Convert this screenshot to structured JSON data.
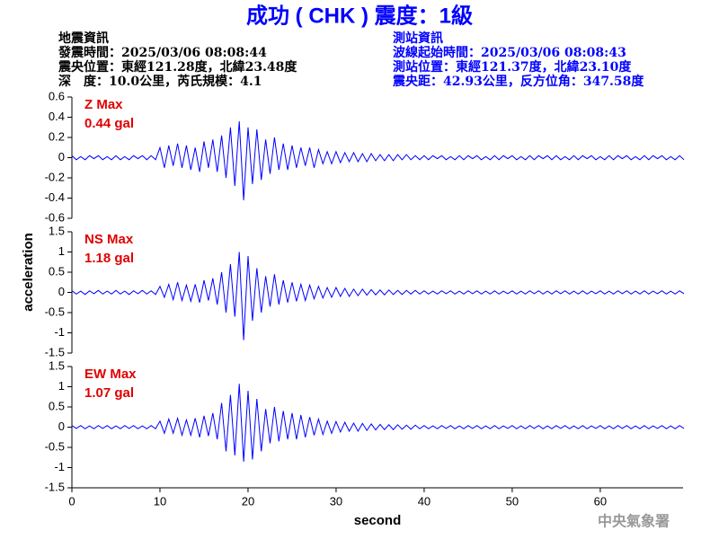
{
  "header": {
    "title": "成功 ( CHK ) 震度：1級",
    "left": [
      "地震資訊",
      "發震時間：2025/03/06 08:08:44",
      "震央位置：東經121.28度，北緯23.48度",
      "深　度：10.0公里，芮氏規模：4.1"
    ],
    "right": [
      "測站資訊",
      "波線起始時間：2025/03/06 08:08:43",
      "測站位置：東經121.37度，北緯23.10度",
      "震央距：42.93公里，反方位角：347.58度"
    ],
    "ylabel": "acceleration",
    "footer": "中央氣象署"
  },
  "chart_data": [
    {
      "type": "line",
      "annotations": [
        "Z Max",
        "0.44 gal"
      ],
      "annotation_color": "#e00000",
      "color": "#0000ff",
      "xlim": [
        0,
        69.4
      ],
      "ylim": [
        -0.6,
        0.6
      ],
      "yticks": [
        0.6,
        0.4,
        0.2,
        0,
        -0.2,
        -0.4,
        -0.6
      ],
      "x": [
        0,
        0.5,
        1,
        1.5,
        2,
        2.5,
        3,
        3.5,
        4,
        4.5,
        5,
        5.5,
        6,
        6.5,
        7,
        7.5,
        8,
        8.5,
        9,
        9.5,
        10,
        10.5,
        11,
        11.5,
        12,
        12.5,
        13,
        13.5,
        14,
        14.5,
        15,
        15.5,
        16,
        16.5,
        17,
        17.5,
        18,
        18.5,
        19,
        19.5,
        20,
        20.5,
        21,
        21.5,
        22,
        22.5,
        23,
        23.5,
        24,
        24.5,
        25,
        25.5,
        26,
        26.5,
        27,
        27.5,
        28,
        28.5,
        29,
        29.5,
        30,
        30.5,
        31,
        31.5,
        32,
        32.5,
        33,
        33.5,
        34,
        34.5,
        35,
        35.5,
        36,
        36.5,
        37,
        37.5,
        38,
        38.5,
        39,
        39.5,
        40,
        40.5,
        41,
        41.5,
        42,
        42.5,
        43,
        43.5,
        44,
        44.5,
        45,
        45.5,
        46,
        46.5,
        47,
        47.5,
        48,
        48.5,
        49,
        49.5,
        50,
        50.5,
        51,
        51.5,
        52,
        52.5,
        53,
        53.5,
        54,
        54.5,
        55,
        55.5,
        56,
        56.5,
        57,
        57.5,
        58,
        58.5,
        59,
        59.5,
        60,
        60.5,
        61,
        61.5,
        62,
        62.5,
        63,
        63.5,
        64,
        64.5,
        65,
        65.5,
        66,
        66.5,
        67,
        67.5,
        68,
        68.5,
        69,
        69.5
      ],
      "values": [
        0.02,
        -0.02,
        0.01,
        -0.02,
        0.02,
        -0.01,
        0.02,
        -0.02,
        0.01,
        -0.02,
        0.02,
        -0.02,
        0.01,
        -0.02,
        0.02,
        -0.01,
        0.02,
        -0.02,
        0.02,
        -0.02,
        0.1,
        -0.1,
        0.12,
        -0.08,
        0.14,
        -0.1,
        0.12,
        -0.12,
        0.1,
        -0.14,
        0.16,
        -0.1,
        0.18,
        -0.14,
        0.22,
        -0.2,
        0.3,
        -0.28,
        0.36,
        -0.42,
        0.3,
        -0.26,
        0.28,
        -0.22,
        0.18,
        -0.16,
        0.2,
        -0.12,
        0.14,
        -0.12,
        0.12,
        -0.1,
        0.1,
        -0.08,
        0.1,
        -0.1,
        0.08,
        -0.06,
        0.06,
        -0.06,
        0.06,
        -0.05,
        0.05,
        -0.04,
        0.05,
        -0.04,
        0.04,
        -0.04,
        0.04,
        -0.03,
        0.03,
        -0.03,
        0.03,
        -0.03,
        0.03,
        -0.02,
        0.03,
        -0.02,
        0.02,
        -0.02,
        0.02,
        -0.02,
        0.02,
        -0.01,
        0.02,
        -0.02,
        0.01,
        -0.02,
        0.02,
        -0.02,
        0.02,
        -0.01,
        0.02,
        -0.02,
        0.01,
        -0.02,
        0.02,
        -0.02,
        0.02,
        -0.01,
        0.02,
        -0.02,
        0.01,
        -0.02,
        0.02,
        -0.02,
        0.02,
        -0.01,
        0.02,
        -0.02,
        0.02,
        -0.02,
        0.01,
        -0.02,
        0.02,
        -0.02,
        0.02,
        -0.01,
        0.02,
        -0.02,
        0.01,
        -0.02,
        0.02,
        -0.02,
        0.02,
        -0.01,
        0.02,
        -0.02,
        0.01,
        -0.02,
        0.02,
        -0.02,
        0.02,
        -0.01,
        0.02,
        -0.02,
        0.01,
        -0.02,
        0.02,
        -0.02
      ]
    },
    {
      "type": "line",
      "annotations": [
        "NS Max",
        "1.18 gal"
      ],
      "annotation_color": "#e00000",
      "color": "#0000ff",
      "xlim": [
        0,
        69.4
      ],
      "ylim": [
        -1.5,
        1.5
      ],
      "yticks": [
        1.5,
        1,
        0.5,
        0,
        -0.5,
        -1,
        -1.5
      ],
      "x": [
        0,
        0.5,
        1,
        1.5,
        2,
        2.5,
        3,
        3.5,
        4,
        4.5,
        5,
        5.5,
        6,
        6.5,
        7,
        7.5,
        8,
        8.5,
        9,
        9.5,
        10,
        10.5,
        11,
        11.5,
        12,
        12.5,
        13,
        13.5,
        14,
        14.5,
        15,
        15.5,
        16,
        16.5,
        17,
        17.5,
        18,
        18.5,
        19,
        19.5,
        20,
        20.5,
        21,
        21.5,
        22,
        22.5,
        23,
        23.5,
        24,
        24.5,
        25,
        25.5,
        26,
        26.5,
        27,
        27.5,
        28,
        28.5,
        29,
        29.5,
        30,
        30.5,
        31,
        31.5,
        32,
        32.5,
        33,
        33.5,
        34,
        34.5,
        35,
        35.5,
        36,
        36.5,
        37,
        37.5,
        38,
        38.5,
        39,
        39.5,
        40,
        40.5,
        41,
        41.5,
        42,
        42.5,
        43,
        43.5,
        44,
        44.5,
        45,
        45.5,
        46,
        46.5,
        47,
        47.5,
        48,
        48.5,
        49,
        49.5,
        50,
        50.5,
        51,
        51.5,
        52,
        52.5,
        53,
        53.5,
        54,
        54.5,
        55,
        55.5,
        56,
        56.5,
        57,
        57.5,
        58,
        58.5,
        59,
        59.5,
        60,
        60.5,
        61,
        61.5,
        62,
        62.5,
        63,
        63.5,
        64,
        64.5,
        65,
        65.5,
        66,
        66.5,
        67,
        67.5,
        68,
        68.5,
        69,
        69.5
      ],
      "values": [
        0.04,
        -0.04,
        0.03,
        -0.05,
        0.04,
        -0.03,
        0.05,
        -0.04,
        0.03,
        -0.04,
        0.05,
        -0.04,
        0.03,
        -0.05,
        0.04,
        -0.03,
        0.05,
        -0.04,
        0.04,
        -0.05,
        0.15,
        -0.12,
        0.2,
        -0.18,
        0.25,
        -0.2,
        0.18,
        -0.22,
        0.2,
        -0.25,
        0.3,
        -0.2,
        0.35,
        -0.3,
        0.5,
        -0.5,
        0.7,
        -0.6,
        1.0,
        -1.18,
        0.9,
        -0.7,
        0.6,
        -0.5,
        0.4,
        -0.35,
        0.45,
        -0.3,
        0.3,
        -0.25,
        0.25,
        -0.22,
        0.2,
        -0.2,
        0.18,
        -0.16,
        0.15,
        -0.14,
        0.12,
        -0.12,
        0.12,
        -0.1,
        0.1,
        -0.1,
        0.08,
        -0.08,
        0.08,
        -0.07,
        0.07,
        -0.06,
        0.06,
        -0.06,
        0.06,
        -0.05,
        0.05,
        -0.05,
        0.05,
        -0.04,
        0.05,
        -0.04,
        0.04,
        -0.04,
        0.03,
        -0.04,
        0.04,
        -0.03,
        0.04,
        -0.04,
        0.03,
        -0.04,
        0.04,
        -0.03,
        0.04,
        -0.04,
        0.03,
        -0.04,
        0.04,
        -0.04,
        0.03,
        -0.03,
        0.04,
        -0.04,
        0.03,
        -0.04,
        0.04,
        -0.03,
        0.04,
        -0.04,
        0.03,
        -0.04,
        0.04,
        -0.03,
        0.04,
        -0.04,
        0.03,
        -0.04,
        0.04,
        -0.04,
        0.03,
        -0.03,
        0.04,
        -0.04,
        0.03,
        -0.04,
        0.04,
        -0.03,
        0.04,
        -0.04,
        0.03,
        -0.04,
        0.04,
        -0.04,
        0.03,
        -0.03,
        0.04,
        -0.04,
        0.03,
        -0.04,
        0.04,
        -0.03
      ]
    },
    {
      "type": "line",
      "annotations": [
        "EW Max",
        "1.07 gal"
      ],
      "annotation_color": "#e00000",
      "color": "#0000ff",
      "xlim": [
        0,
        69.4
      ],
      "ylim": [
        -1.5,
        1.5
      ],
      "yticks": [
        1.5,
        1,
        0.5,
        0,
        -0.5,
        -1,
        -1.5
      ],
      "xticks": [
        0,
        10,
        20,
        30,
        40,
        50,
        60
      ],
      "xlabel": "second",
      "x": [
        0,
        0.5,
        1,
        1.5,
        2,
        2.5,
        3,
        3.5,
        4,
        4.5,
        5,
        5.5,
        6,
        6.5,
        7,
        7.5,
        8,
        8.5,
        9,
        9.5,
        10,
        10.5,
        11,
        11.5,
        12,
        12.5,
        13,
        13.5,
        14,
        14.5,
        15,
        15.5,
        16,
        16.5,
        17,
        17.5,
        18,
        18.5,
        19,
        19.5,
        20,
        20.5,
        21,
        21.5,
        22,
        22.5,
        23,
        23.5,
        24,
        24.5,
        25,
        25.5,
        26,
        26.5,
        27,
        27.5,
        28,
        28.5,
        29,
        29.5,
        30,
        30.5,
        31,
        31.5,
        32,
        32.5,
        33,
        33.5,
        34,
        34.5,
        35,
        35.5,
        36,
        36.5,
        37,
        37.5,
        38,
        38.5,
        39,
        39.5,
        40,
        40.5,
        41,
        41.5,
        42,
        42.5,
        43,
        43.5,
        44,
        44.5,
        45,
        45.5,
        46,
        46.5,
        47,
        47.5,
        48,
        48.5,
        49,
        49.5,
        50,
        50.5,
        51,
        51.5,
        52,
        52.5,
        53,
        53.5,
        54,
        54.5,
        55,
        55.5,
        56,
        56.5,
        57,
        57.5,
        58,
        58.5,
        59,
        59.5,
        60,
        60.5,
        61,
        61.5,
        62,
        62.5,
        63,
        63.5,
        64,
        64.5,
        65,
        65.5,
        66,
        66.5,
        67,
        67.5,
        68,
        68.5,
        69,
        69.5
      ],
      "values": [
        0.04,
        -0.03,
        0.04,
        -0.04,
        0.03,
        -0.04,
        0.04,
        -0.03,
        0.04,
        -0.04,
        0.03,
        -0.04,
        0.04,
        -0.03,
        0.04,
        -0.04,
        0.03,
        -0.04,
        0.04,
        -0.04,
        0.15,
        -0.15,
        0.2,
        -0.15,
        0.22,
        -0.2,
        0.18,
        -0.2,
        0.22,
        -0.25,
        0.28,
        -0.22,
        0.35,
        -0.3,
        0.6,
        -0.6,
        0.8,
        -0.7,
        1.07,
        -0.85,
        0.9,
        -0.8,
        0.7,
        -0.6,
        0.45,
        -0.4,
        0.5,
        -0.35,
        0.4,
        -0.3,
        0.35,
        -0.3,
        0.3,
        -0.25,
        0.25,
        -0.2,
        0.2,
        -0.18,
        0.15,
        -0.15,
        0.14,
        -0.12,
        0.12,
        -0.1,
        0.1,
        -0.1,
        0.09,
        -0.08,
        0.08,
        -0.07,
        0.07,
        -0.06,
        0.06,
        -0.06,
        0.06,
        -0.05,
        0.05,
        -0.05,
        0.05,
        -0.04,
        0.04,
        -0.04,
        0.03,
        -0.04,
        0.04,
        -0.03,
        0.04,
        -0.04,
        0.03,
        -0.04,
        0.04,
        -0.03,
        0.04,
        -0.04,
        0.03,
        -0.04,
        0.04,
        -0.04,
        0.03,
        -0.03,
        0.04,
        -0.04,
        0.03,
        -0.04,
        0.04,
        -0.03,
        0.04,
        -0.04,
        0.03,
        -0.04,
        0.04,
        -0.03,
        0.04,
        -0.04,
        0.03,
        -0.04,
        0.04,
        -0.04,
        0.03,
        -0.03,
        0.04,
        -0.04,
        0.03,
        -0.04,
        0.04,
        -0.03,
        0.04,
        -0.04,
        0.03,
        -0.04,
        0.04,
        -0.04,
        0.03,
        -0.03,
        0.04,
        -0.04,
        0.03,
        -0.04,
        0.04,
        -0.03
      ]
    }
  ]
}
